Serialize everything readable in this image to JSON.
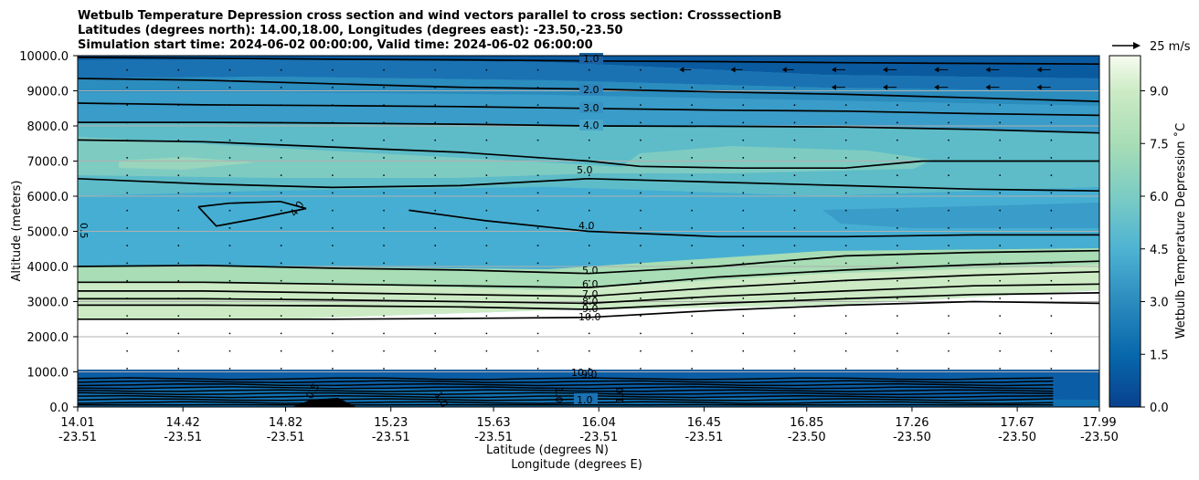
{
  "chart_data": {
    "type": "contour",
    "title_lines": [
      "Wetbulb Temperature Depression cross section and wind vectors parallel to cross section: CrosssectionB",
      "Latitudes (degrees north): 14.00,18.00, Longitudes (degrees east): -23.50,-23.50",
      "Simulation start time: 2024-06-02 00:00:00, Valid time: 2024-06-02 06:00:00"
    ],
    "xlabel_lat": "Latitude (degrees N)",
    "xlabel_lon": "Longitude (degrees E)",
    "ylabel": "Altitude (meters)",
    "ylim": [
      0,
      10000
    ],
    "grid": true,
    "x_ticks": [
      {
        "lat": "14.01",
        "lon": "-23.51"
      },
      {
        "lat": "14.42",
        "lon": "-23.51"
      },
      {
        "lat": "14.82",
        "lon": "-23.51"
      },
      {
        "lat": "15.23",
        "lon": "-23.51"
      },
      {
        "lat": "15.63",
        "lon": "-23.51"
      },
      {
        "lat": "16.04",
        "lon": "-23.51"
      },
      {
        "lat": "16.45",
        "lon": "-23.51"
      },
      {
        "lat": "16.85",
        "lon": "-23.50"
      },
      {
        "lat": "17.26",
        "lon": "-23.50"
      },
      {
        "lat": "17.67",
        "lon": "-23.50"
      },
      {
        "lat": "17.99",
        "lon": "-23.50"
      }
    ],
    "x_tick_values": [
      14.01,
      14.42,
      14.82,
      15.23,
      15.63,
      16.04,
      16.45,
      16.85,
      17.26,
      17.67,
      17.99
    ],
    "y_ticks": [
      "0.0",
      "1000.0",
      "2000.0",
      "3000.0",
      "4000.0",
      "5000.0",
      "6000.0",
      "7000.0",
      "8000.0",
      "9000.0",
      "10000.0"
    ],
    "y_tick_values": [
      0,
      1000,
      2000,
      3000,
      4000,
      5000,
      6000,
      7000,
      8000,
      9000,
      10000
    ],
    "colorbar": {
      "label": "Wetbulb Temperature Depression ˚C",
      "ticks": [
        "0.0",
        "1.5",
        "3.0",
        "4.5",
        "6.0",
        "7.5",
        "9.0"
      ],
      "tick_values": [
        0,
        1.5,
        3,
        4.5,
        6,
        7.5,
        9
      ],
      "range": [
        0,
        10
      ],
      "colormap": "GnBu_r"
    },
    "wind_key": {
      "label": "25 m/s",
      "speed": 25
    },
    "contour_labels": [
      "1.0",
      "2.0",
      "3.0",
      "4.0",
      "5.0",
      "4.0",
      "4.0",
      "5.0",
      "6.0",
      "7.0",
      "8.0",
      "9.0",
      "10.0",
      "10.0",
      "1.0",
      "1.0",
      "1.0",
      "1.0",
      "0.5",
      "0.5",
      "9.0"
    ],
    "contours": [
      {
        "level": 1,
        "x": [
          14.01,
          14.5,
          15.0,
          15.5,
          16.0,
          16.5,
          17.0,
          17.5,
          17.99
        ],
        "alt": [
          9950,
          9930,
          9900,
          9880,
          9850,
          9830,
          9800,
          9780,
          9760
        ]
      },
      {
        "level": 2,
        "x": [
          14.01,
          14.5,
          15.0,
          15.5,
          16.0,
          16.5,
          17.0,
          17.5,
          17.99
        ],
        "alt": [
          9350,
          9300,
          9200,
          9100,
          9050,
          8970,
          8900,
          8800,
          8700
        ]
      },
      {
        "level": 3,
        "x": [
          14.01,
          14.5,
          15.0,
          15.5,
          16.0,
          16.5,
          17.0,
          17.5,
          17.99
        ],
        "alt": [
          8650,
          8600,
          8580,
          8550,
          8500,
          8450,
          8420,
          8350,
          8300
        ]
      },
      {
        "level": 4,
        "x": [
          14.01,
          14.5,
          15.0,
          15.5,
          16.0,
          16.5,
          17.0,
          17.5,
          17.99
        ],
        "alt": [
          8100,
          8100,
          8080,
          8050,
          8000,
          7990,
          7970,
          7900,
          7800
        ]
      },
      {
        "level": 5,
        "x": [
          14.01,
          14.5,
          15.0,
          15.5,
          16.0,
          16.2,
          16.6,
          17.0,
          17.3,
          17.99
        ],
        "alt": [
          7600,
          7550,
          7400,
          7250,
          7000,
          6850,
          6800,
          6800,
          7000,
          7000
        ]
      },
      {
        "level": 5,
        "x": [
          14.01,
          14.5,
          15.0,
          15.5,
          16.0,
          16.5,
          17.0,
          17.5,
          17.99
        ],
        "alt": [
          6500,
          6350,
          6250,
          6300,
          6500,
          6400,
          6300,
          6200,
          6150
        ]
      },
      {
        "level": 4,
        "x": [
          14.48,
          14.6,
          14.8,
          14.9,
          14.7,
          14.55,
          14.48
        ],
        "alt": [
          5700,
          5800,
          5850,
          5650,
          5350,
          5150,
          5700
        ]
      },
      {
        "level": 4,
        "x": [
          15.3,
          15.6,
          16.0,
          16.5,
          17.0,
          17.5,
          17.99
        ],
        "alt": [
          5600,
          5300,
          5000,
          4850,
          4850,
          4900,
          4900
        ]
      },
      {
        "level": 5,
        "x": [
          14.01,
          14.5,
          15.0,
          15.5,
          16.0,
          16.5,
          17.0,
          17.5,
          17.99
        ],
        "alt": [
          4000,
          4030,
          3950,
          3900,
          3800,
          4000,
          4300,
          4400,
          4450
        ]
      },
      {
        "level": 6,
        "x": [
          14.01,
          14.5,
          15.0,
          15.5,
          16.0,
          16.5,
          17.0,
          17.5,
          17.99
        ],
        "alt": [
          3550,
          3550,
          3500,
          3450,
          3400,
          3700,
          3900,
          4050,
          4150
        ]
      },
      {
        "level": 7,
        "x": [
          14.01,
          14.5,
          15.0,
          15.5,
          16.0,
          16.5,
          17.0,
          17.5,
          17.99
        ],
        "alt": [
          3300,
          3300,
          3250,
          3200,
          3150,
          3400,
          3600,
          3750,
          3850
        ]
      },
      {
        "level": 8,
        "x": [
          14.01,
          14.5,
          15.0,
          15.5,
          16.0,
          16.5,
          17.0,
          17.5,
          17.99
        ],
        "alt": [
          3080,
          3080,
          3050,
          3000,
          2950,
          3150,
          3300,
          3450,
          3500
        ]
      },
      {
        "level": 9,
        "x": [
          14.01,
          14.5,
          15.0,
          15.5,
          16.0,
          16.5,
          17.0,
          17.5,
          17.99
        ],
        "alt": [
          2900,
          2900,
          2880,
          2850,
          2780,
          2950,
          3080,
          3200,
          3250
        ]
      },
      {
        "level": 10,
        "x": [
          14.01,
          14.5,
          15.0,
          15.5,
          16.0,
          16.5,
          17.0,
          17.5,
          17.99
        ],
        "alt": [
          2500,
          2500,
          2500,
          2520,
          2550,
          2750,
          2900,
          3000,
          2950
        ]
      }
    ]
  }
}
